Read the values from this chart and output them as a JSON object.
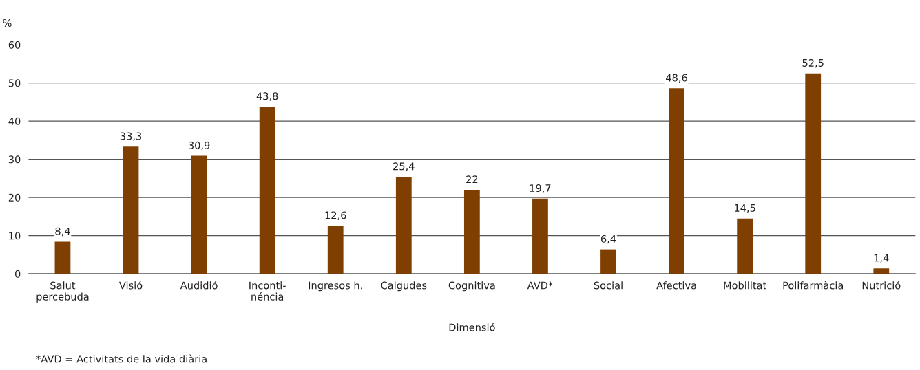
{
  "chart_data": {
    "type": "bar",
    "categories": [
      "Salut\npercebuda",
      "Visió",
      "Audidió",
      "Inconti-\nnéncia",
      "Ingresos h.",
      "Caigudes",
      "Cognitiva",
      "AVD*",
      "Social",
      "Afectiva",
      "Mobilitat",
      "Polifarmàcia",
      "Nutrició"
    ],
    "values": [
      8.4,
      33.3,
      30.9,
      43.8,
      12.6,
      25.4,
      22,
      19.7,
      6.4,
      48.6,
      14.5,
      52.5,
      1.4
    ],
    "color": "#7f3f00",
    "ylabel": "%",
    "xlabel": "Dimensió",
    "ylim": [
      0,
      60
    ],
    "yticks": [
      0,
      10,
      20,
      30,
      40,
      50,
      60
    ],
    "value_labels": [
      "8,4",
      "33,3",
      "30,9",
      "43,8",
      "12,6",
      "25,4",
      "22",
      "19,7",
      "6,4",
      "48,6",
      "14,5",
      "52,5",
      "1,4"
    ],
    "grid": "y",
    "legend": false,
    "annotations": [
      "*AVD = Activitats de la vida diària"
    ]
  }
}
